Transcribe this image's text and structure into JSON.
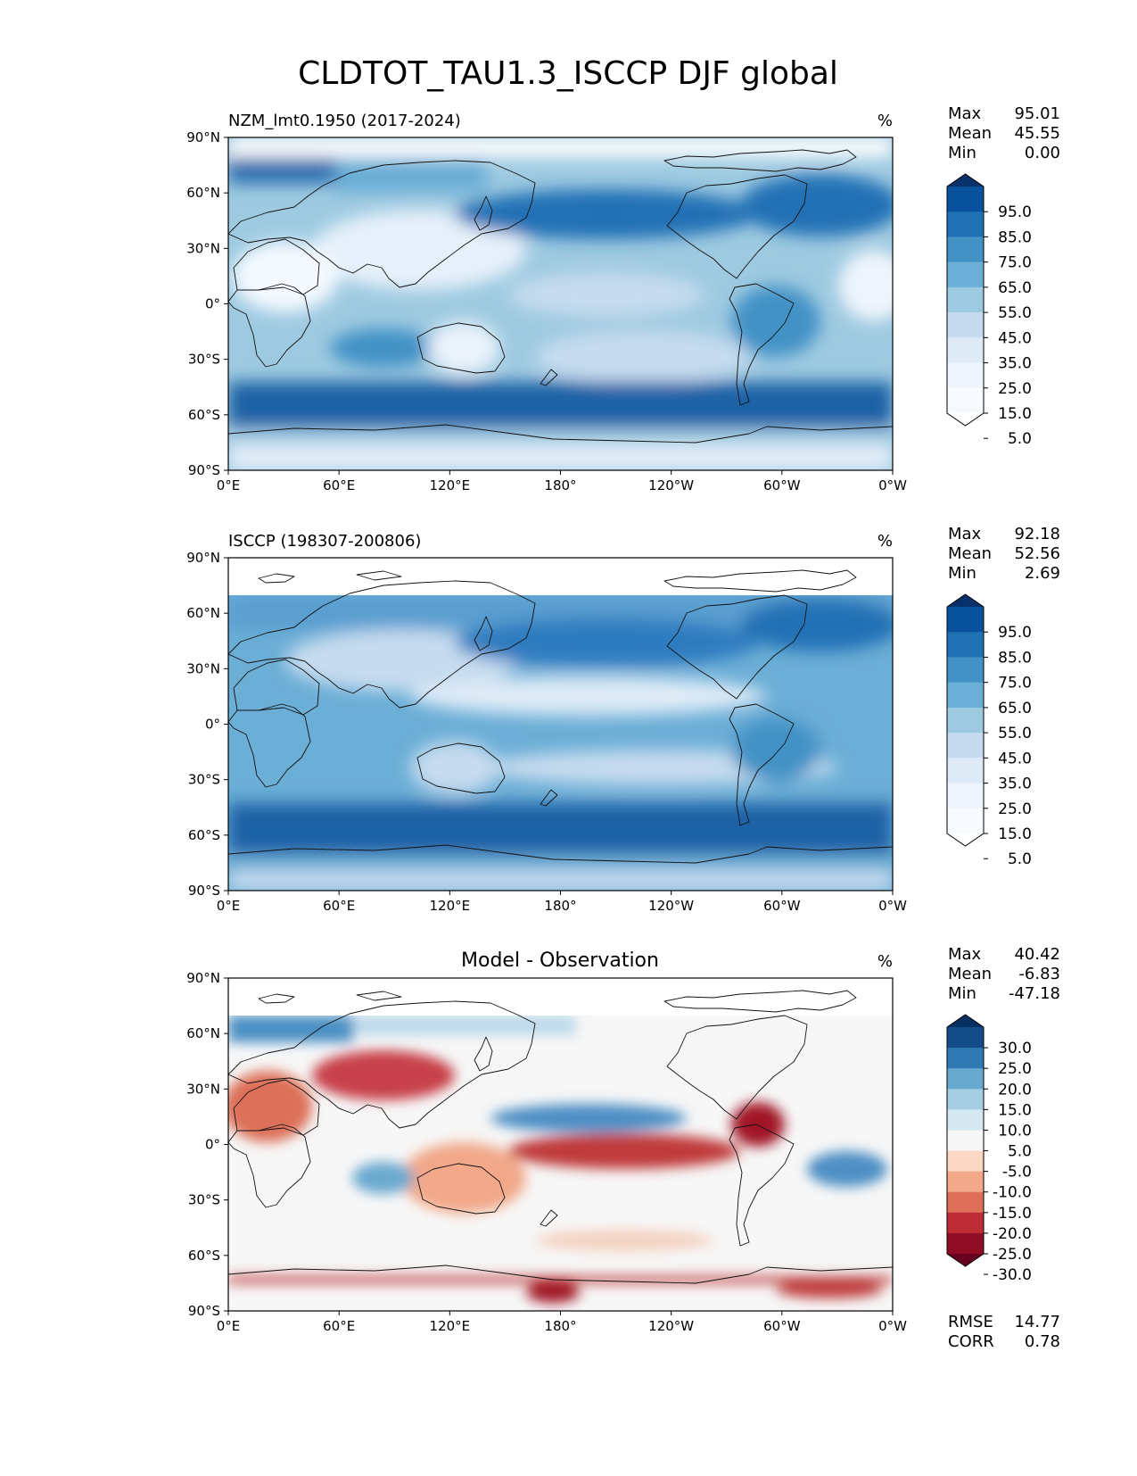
{
  "title": "CLDTOT_TAU1.3_ISCCP DJF global",
  "lat_ticks": [
    "90°N",
    "60°N",
    "30°N",
    "0°",
    "30°S",
    "60°S",
    "90°S"
  ],
  "lon_ticks": [
    "0°E",
    "60°E",
    "120°E",
    "180°",
    "120°W",
    "60°W",
    "0°W"
  ],
  "panels": [
    {
      "left_title": "NZM_lmt0.1950 (2017-2024)",
      "center_title": "",
      "unit": "%",
      "stats": [
        {
          "label": "Max",
          "value": "95.01"
        },
        {
          "label": "Mean",
          "value": "45.55"
        },
        {
          "label": "Min",
          "value": "0.00"
        }
      ],
      "colorbar_labels": [
        "95.0",
        "85.0",
        "75.0",
        "65.0",
        "55.0",
        "45.0",
        "35.0",
        "25.0",
        "15.0",
        "5.0"
      ],
      "colorbar_colors": [
        "#08306b",
        "#08519c",
        "#2171b5",
        "#4292c6",
        "#6baed6",
        "#9ecae1",
        "#c6dbef",
        "#deebf7",
        "#eef5fc",
        "#f7fbff",
        "#ffffff"
      ],
      "footer_stats": []
    },
    {
      "left_title": "ISCCP (198307-200806)",
      "center_title": "",
      "unit": "%",
      "stats": [
        {
          "label": "Max",
          "value": "92.18"
        },
        {
          "label": "Mean",
          "value": "52.56"
        },
        {
          "label": "Min",
          "value": "2.69"
        }
      ],
      "colorbar_labels": [
        "95.0",
        "85.0",
        "75.0",
        "65.0",
        "55.0",
        "45.0",
        "35.0",
        "25.0",
        "15.0",
        "5.0"
      ],
      "colorbar_colors": [
        "#08306b",
        "#08519c",
        "#2171b5",
        "#4292c6",
        "#6baed6",
        "#9ecae1",
        "#c6dbef",
        "#deebf7",
        "#eef5fc",
        "#f7fbff",
        "#ffffff"
      ],
      "footer_stats": []
    },
    {
      "left_title": "",
      "center_title": "Model - Observation",
      "unit": "%",
      "stats": [
        {
          "label": "Max",
          "value": "40.42"
        },
        {
          "label": "Mean",
          "value": "-6.83"
        },
        {
          "label": "Min",
          "value": "-47.18"
        }
      ],
      "colorbar_labels": [
        "30.0",
        "25.0",
        "20.0",
        "15.0",
        "10.0",
        "5.0",
        "-5.0",
        "-10.0",
        "-15.0",
        "-20.0",
        "-25.0",
        "-30.0"
      ],
      "colorbar_colors": [
        "#053061",
        "#134c87",
        "#2f79b5",
        "#6aa9cf",
        "#a6cee3",
        "#d5e7f1",
        "#f7f7f7",
        "#fbd7c4",
        "#f2a889",
        "#dd6f59",
        "#be2c35",
        "#8e0d25",
        "#67001f"
      ],
      "footer_stats": [
        {
          "label": "RMSE",
          "value": "14.77"
        },
        {
          "label": "CORR",
          "value": "0.78"
        }
      ]
    }
  ]
}
